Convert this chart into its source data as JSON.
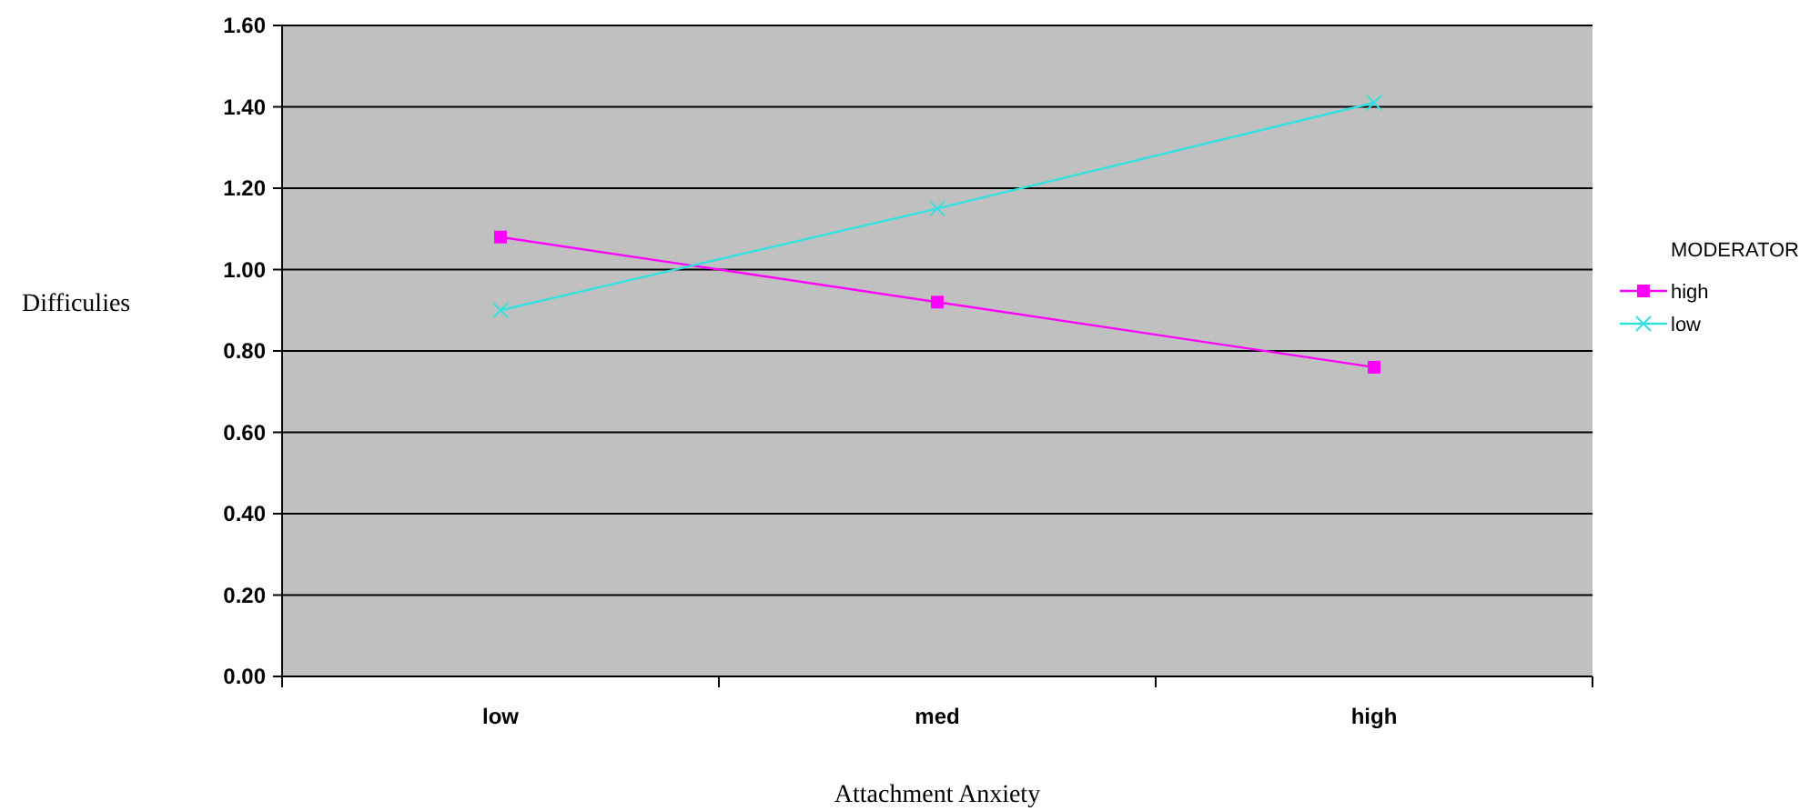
{
  "chart_data": {
    "type": "line",
    "xlabel": "Attachment Anxiety",
    "ylabel": "Difficulies",
    "legend_title": "MODERATOR",
    "legend": "right",
    "grid": "y",
    "categories": [
      "low",
      "med",
      "high"
    ],
    "ylim": [
      0,
      1.6
    ],
    "yticks": [
      {
        "value": 0,
        "label": "0.00"
      },
      {
        "value": 0.2,
        "label": "0.20"
      },
      {
        "value": 0.4,
        "label": "0.40"
      },
      {
        "value": 0.6,
        "label": "0.60"
      },
      {
        "value": 0.8,
        "label": "0.80"
      },
      {
        "value": 1,
        "label": "1.00"
      },
      {
        "value": 1.2,
        "label": "1.20"
      },
      {
        "value": 1.4,
        "label": "1.40"
      },
      {
        "value": 1.6,
        "label": "1.60"
      }
    ],
    "series": [
      {
        "name": "high",
        "color": "#ff00ff",
        "marker": "square",
        "values": [
          1.08,
          0.92,
          0.76
        ]
      },
      {
        "name": "low",
        "color": "#33e0e0",
        "marker": "cross",
        "values": [
          0.9,
          1.15,
          1.41
        ]
      }
    ]
  }
}
